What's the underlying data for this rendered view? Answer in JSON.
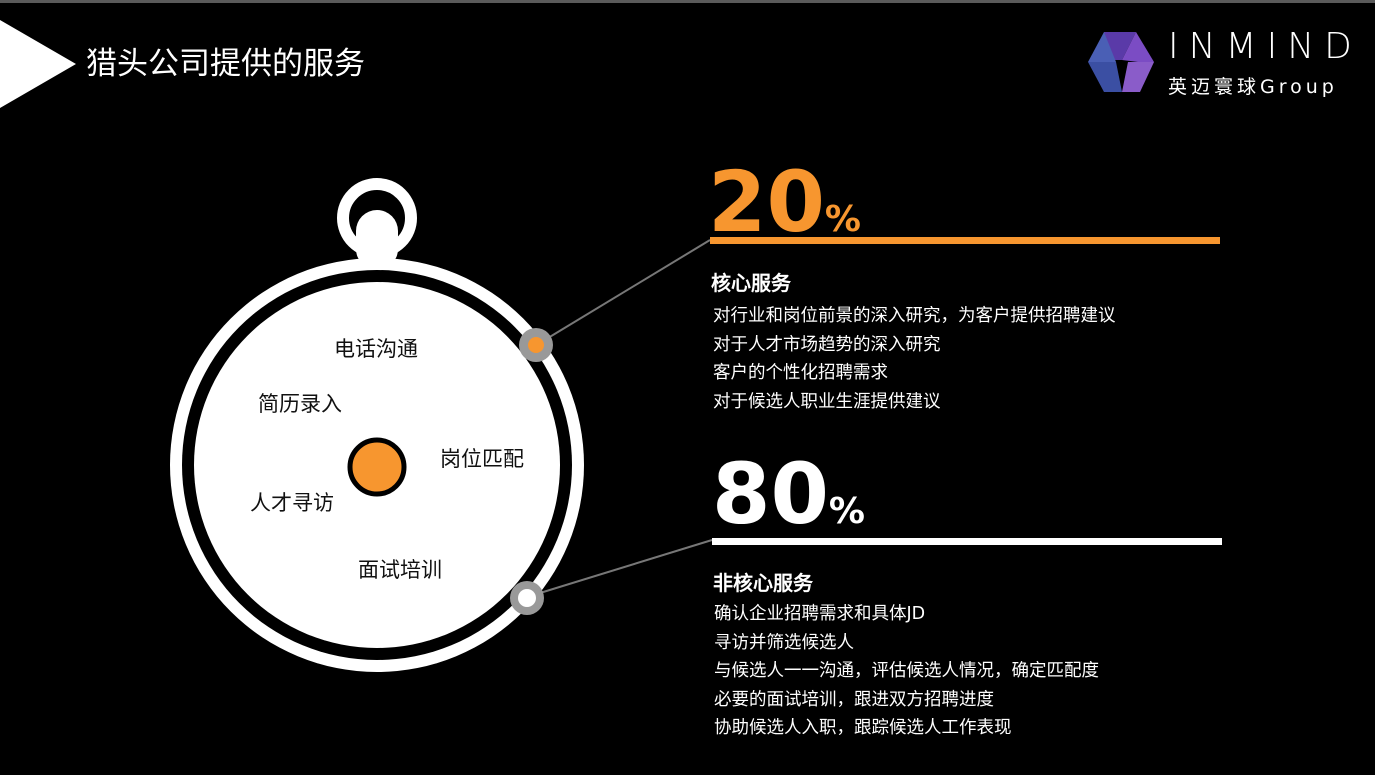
{
  "title": "猎头公司提供的服务",
  "logo": {
    "name": "INMIND",
    "subtitle": "英迈寰球Group",
    "colors": [
      "#3d4fa8",
      "#6a3fb5",
      "#8a5cc9",
      "#4a68c0"
    ]
  },
  "watch": {
    "labels": [
      "电话沟通",
      "简历录入",
      "岗位匹配",
      "人才寻访",
      "面试培训"
    ]
  },
  "core": {
    "percent": "20",
    "percent_sign": "%",
    "heading": "核心服务",
    "color": "#f7962f",
    "items": [
      "对行业和岗位前景的深入研究，为客户提供招聘建议",
      "对于人才市场趋势的深入研究",
      "客户的个性化招聘需求",
      "对于候选人职业生涯提供建议"
    ]
  },
  "noncore": {
    "percent": "80",
    "percent_sign": "%",
    "heading": "非核心服务",
    "color": "#ffffff",
    "items": [
      "确认企业招聘需求和具体JD",
      "寻访并筛选候选人",
      "与候选人一一沟通，评估候选人情况，确定匹配度",
      "必要的面试培训，跟进双方招聘进度",
      "协助候选人入职，跟踪候选人工作表现"
    ]
  }
}
